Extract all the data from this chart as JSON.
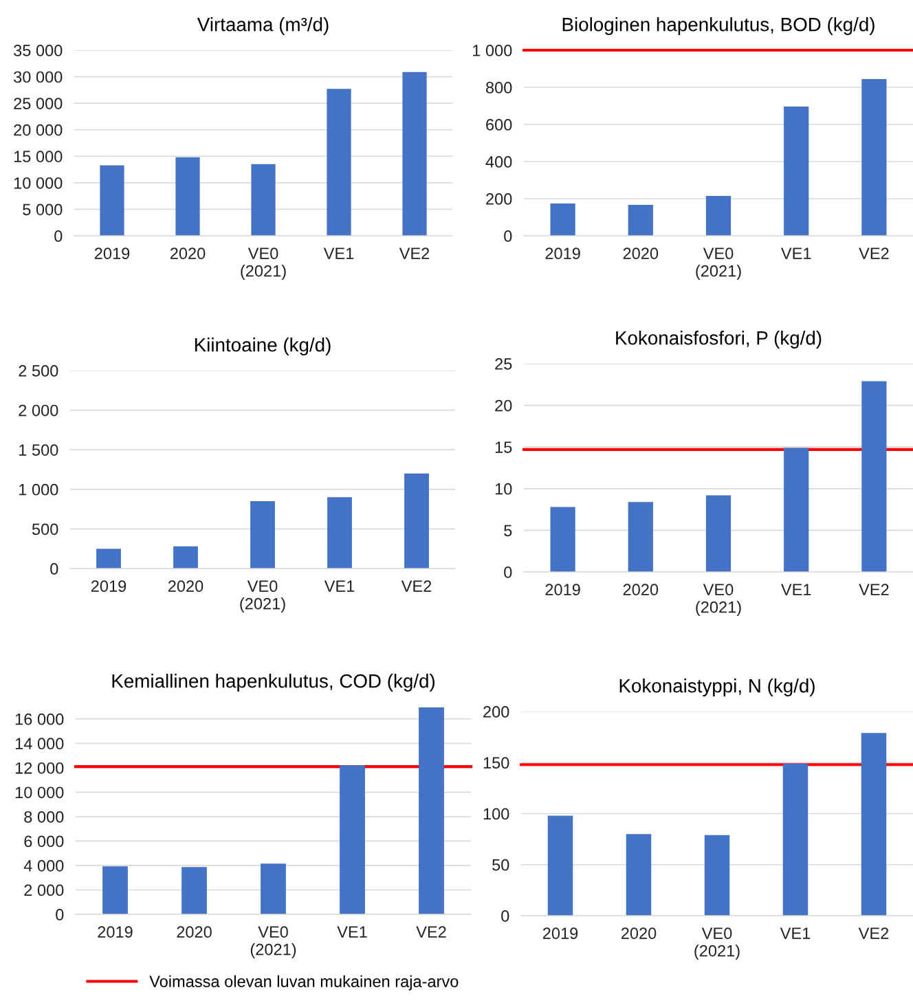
{
  "chart_data": [
    {
      "type": "bar",
      "title": "Virtaama (m³/d)",
      "categories": [
        "2019",
        "2020",
        "VE0\n(2021)",
        "VE1",
        "VE2"
      ],
      "values": [
        13300,
        14800,
        13500,
        27700,
        30900
      ],
      "color": "#4472c4",
      "ylim": [
        0,
        35000
      ],
      "yticks": [
        0,
        {
          "value": 5000,
          "label": "5 000"
        },
        {
          "value": 10000,
          "label": "10 000"
        },
        {
          "value": 15000,
          "label": "15 000"
        },
        {
          "value": 20000,
          "label": "20 000"
        },
        {
          "value": 25000,
          "label": "25 000"
        },
        {
          "value": 30000,
          "label": "30 000"
        },
        {
          "value": 35000,
          "label": "35 000"
        }
      ],
      "grid": "y"
    },
    {
      "type": "bar",
      "title": "Biologinen hapenkulutus, BOD (kg/d)",
      "categories": [
        "2019",
        "2020",
        "VE0\n(2021)",
        "VE1",
        "VE2"
      ],
      "values": [
        174,
        167,
        215,
        696,
        844
      ],
      "color": "#4472c4",
      "ylim": [
        0,
        1000
      ],
      "yticks": [
        0,
        200,
        400,
        600,
        800,
        {
          "value": 1000,
          "label": "1 000"
        }
      ],
      "grid": "y",
      "ref_lines": [
        {
          "axis": "y",
          "value": 1000,
          "label": "Voimassa olevan luvan mukainen raja-arvo",
          "color": "#ff0000"
        }
      ],
      "legend": "bottom"
    },
    {
      "type": "bar",
      "title": "Kiintoaine (kg/d)",
      "categories": [
        "2019",
        "2020",
        "VE0\n(2021)",
        "VE1",
        "VE2"
      ],
      "values": [
        250,
        280,
        850,
        900,
        1200
      ],
      "color": "#4472c4",
      "ylim": [
        0,
        2500
      ],
      "yticks": [
        0,
        500,
        {
          "value": 1000,
          "label": "1 000"
        },
        {
          "value": 1500,
          "label": "1 500"
        },
        {
          "value": 2000,
          "label": "2 000"
        },
        {
          "value": 2500,
          "label": "2 500"
        }
      ],
      "grid": "y"
    },
    {
      "type": "bar",
      "title": "Kokonaisfosfori, P (kg/d)",
      "categories": [
        "2019",
        "2020",
        "VE0\n(2021)",
        "VE1",
        "VE2"
      ],
      "values": [
        7.8,
        8.4,
        9.2,
        14.9,
        22.9
      ],
      "color": "#4472c4",
      "ylim": [
        0,
        25
      ],
      "yticks": [
        0,
        5,
        10,
        15,
        20,
        25
      ],
      "grid": "y",
      "ref_lines": [
        {
          "axis": "y",
          "value": 14.7,
          "color": "#ff0000"
        }
      ]
    },
    {
      "type": "bar",
      "title": "Kemiallinen hapenkulutus, COD (kg/d)",
      "categories": [
        "2019",
        "2020",
        "VE0\n(2021)",
        "VE1",
        "VE2"
      ],
      "values": [
        3930,
        3870,
        4150,
        12200,
        16950
      ],
      "color": "#4472c4",
      "ylim": [
        0,
        17000
      ],
      "yticks": [
        0,
        {
          "value": 2000,
          "label": "2 000"
        },
        {
          "value": 4000,
          "label": "4 000"
        },
        {
          "value": 6000,
          "label": "6 000"
        },
        {
          "value": 8000,
          "label": "8 000"
        },
        {
          "value": 10000,
          "label": "10 000"
        },
        {
          "value": 12000,
          "label": "12 000"
        },
        {
          "value": 14000,
          "label": "14 000"
        },
        {
          "value": 16000,
          "label": "16 000"
        }
      ],
      "grid": "y",
      "ref_lines": [
        {
          "axis": "y",
          "value": 12100,
          "color": "#ff0000"
        }
      ]
    },
    {
      "type": "bar",
      "title": "Kokonaistyppi, N (kg/d)",
      "categories": [
        "2019",
        "2020",
        "VE0\n(2021)",
        "VE1",
        "VE2"
      ],
      "values": [
        98,
        80,
        79,
        149,
        179
      ],
      "color": "#4472c4",
      "ylim": [
        0,
        200
      ],
      "yticks": [
        0,
        50,
        100,
        150,
        200
      ],
      "grid": "y",
      "ref_lines": [
        {
          "axis": "y",
          "value": 148,
          "color": "#ff0000"
        }
      ]
    }
  ]
}
